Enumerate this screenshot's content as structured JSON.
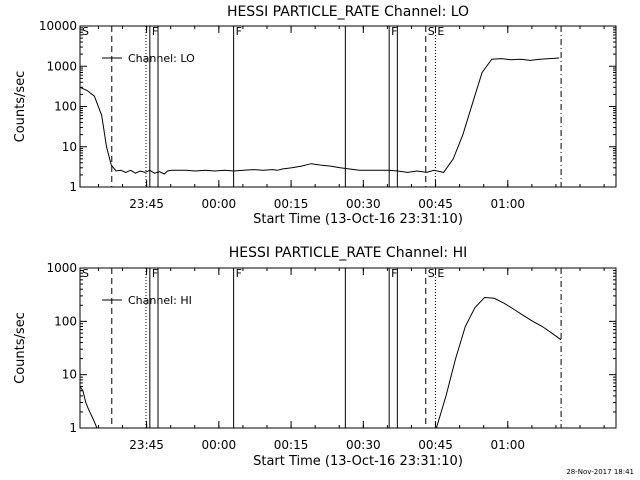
{
  "footer": {
    "timestamp": "28-Nov-2017 18:41"
  },
  "chart_data": [
    {
      "type": "line",
      "title": "HESSI PARTICLE_RATE Channel: LO",
      "xlabel": "Start Time (13-Oct-16 23:31:10)",
      "ylabel": "Counts/sec",
      "y_scale": "log",
      "ylim": [
        1,
        10000
      ],
      "xlim_minutes_after_start": [
        0,
        111.3
      ],
      "x_ticks": [
        {
          "label": "23:45",
          "t": 13.83
        },
        {
          "label": "00:00",
          "t": 28.83
        },
        {
          "label": "00:15",
          "t": 43.83
        },
        {
          "label": "00:30",
          "t": 58.83
        },
        {
          "label": "00:45",
          "t": 73.83
        },
        {
          "label": "01:00",
          "t": 88.83
        }
      ],
      "y_ticks": [
        {
          "label": "1",
          "v": 1
        },
        {
          "label": "10",
          "v": 10
        },
        {
          "label": "100",
          "v": 100
        },
        {
          "label": "1000",
          "v": 1000
        },
        {
          "label": "10000",
          "v": 10000
        }
      ],
      "legend": "top-left",
      "series": [
        {
          "name": "Channel: LO",
          "x": [
            0,
            1.5,
            3,
            4.5,
            5.5,
            6.5,
            7.5,
            8.5,
            9.5,
            10.5,
            11.5,
            12.5,
            13.5,
            14.5,
            15.5,
            16.5,
            17.5,
            18.2,
            19,
            20,
            22,
            24,
            26,
            28,
            30,
            32,
            34,
            36,
            38,
            40,
            41,
            42,
            44,
            46,
            48,
            50,
            52,
            54,
            56,
            58,
            60,
            62,
            64,
            66,
            68,
            70,
            72,
            73.5,
            75.5,
            77.5,
            79.5,
            81.5,
            83.5,
            85.5,
            87.5,
            89.5,
            91.5,
            93.5,
            95.5,
            97.5,
            99.5
          ],
          "y": [
            300,
            250,
            180,
            60,
            10,
            3.5,
            2.5,
            2.6,
            2.3,
            2.6,
            2.2,
            2.5,
            2.3,
            2.6,
            2.2,
            2.4,
            2.1,
            2.5,
            2.6,
            2.6,
            2.6,
            2.5,
            2.6,
            2.5,
            2.6,
            2.5,
            2.6,
            2.7,
            2.6,
            2.7,
            2.6,
            2.8,
            3,
            3.3,
            3.8,
            3.5,
            3.3,
            3,
            2.8,
            2.6,
            2.6,
            2.6,
            2.6,
            2.5,
            2.3,
            2.5,
            2.3,
            2.6,
            2.3,
            5,
            20,
            120,
            700,
            1500,
            1550,
            1450,
            1500,
            1400,
            1500,
            1550,
            1600
          ]
        }
      ],
      "annotations": [
        {
          "label": "S",
          "t": 0,
          "style": "dash-dot"
        },
        {
          "label": "F",
          "t": 14.5,
          "style": "solid"
        },
        {
          "label": "",
          "t": 13.7,
          "style": "dotted"
        },
        {
          "label": "",
          "t": 16.2,
          "style": "solid"
        },
        {
          "label": "F",
          "t": 31.9,
          "style": "solid"
        },
        {
          "label": "",
          "t": 6.6,
          "style": "dashed"
        },
        {
          "label": "",
          "t": 55.1,
          "style": "solid"
        },
        {
          "label": "F",
          "t": 64.2,
          "style": "solid"
        },
        {
          "label": "",
          "t": 65.9,
          "style": "solid"
        },
        {
          "label": "S",
          "t": 71.8,
          "style": "dashed"
        },
        {
          "label": "E",
          "t": 73.8,
          "style": "dotted"
        },
        {
          "label": "",
          "t": 99.9,
          "style": "dash-dot"
        }
      ]
    },
    {
      "type": "line",
      "title": "HESSI PARTICLE_RATE Channel: HI",
      "xlabel": "Start Time (13-Oct-16 23:31:10)",
      "ylabel": "Counts/sec",
      "y_scale": "log",
      "ylim": [
        1,
        1000
      ],
      "xlim_minutes_after_start": [
        0,
        111.3
      ],
      "x_ticks": [
        {
          "label": "23:45",
          "t": 13.83
        },
        {
          "label": "00:00",
          "t": 28.83
        },
        {
          "label": "00:15",
          "t": 43.83
        },
        {
          "label": "00:30",
          "t": 58.83
        },
        {
          "label": "00:45",
          "t": 73.83
        },
        {
          "label": "01:00",
          "t": 88.83
        }
      ],
      "y_ticks": [
        {
          "label": "1",
          "v": 1
        },
        {
          "label": "10",
          "v": 10
        },
        {
          "label": "100",
          "v": 100
        },
        {
          "label": "1000",
          "v": 1000
        }
      ],
      "legend": "top-left",
      "series": [
        {
          "name": "Channel: HI",
          "x": [
            0,
            0.6,
            1.2,
            1.8,
            2.4,
            3.0,
            3.5,
            74.0,
            76,
            78,
            80,
            82,
            84,
            86,
            88,
            90,
            92,
            94,
            96,
            98,
            99.9
          ],
          "y": [
            6,
            5,
            3,
            2.2,
            1.7,
            1.3,
            1,
            1,
            4,
            20,
            80,
            180,
            280,
            270,
            220,
            170,
            130,
            100,
            80,
            60,
            45
          ]
        }
      ],
      "annotations": [
        {
          "label": "S",
          "t": 0,
          "style": "dash-dot"
        },
        {
          "label": "F",
          "t": 14.5,
          "style": "solid"
        },
        {
          "label": "",
          "t": 13.7,
          "style": "dotted"
        },
        {
          "label": "",
          "t": 16.2,
          "style": "solid"
        },
        {
          "label": "F",
          "t": 31.9,
          "style": "solid"
        },
        {
          "label": "",
          "t": 6.6,
          "style": "dashed"
        },
        {
          "label": "",
          "t": 55.1,
          "style": "solid"
        },
        {
          "label": "F",
          "t": 64.2,
          "style": "solid"
        },
        {
          "label": "",
          "t": 65.9,
          "style": "solid"
        },
        {
          "label": "S",
          "t": 71.8,
          "style": "dashed"
        },
        {
          "label": "E",
          "t": 73.8,
          "style": "dotted"
        },
        {
          "label": "",
          "t": 99.9,
          "style": "dash-dot"
        }
      ]
    }
  ]
}
